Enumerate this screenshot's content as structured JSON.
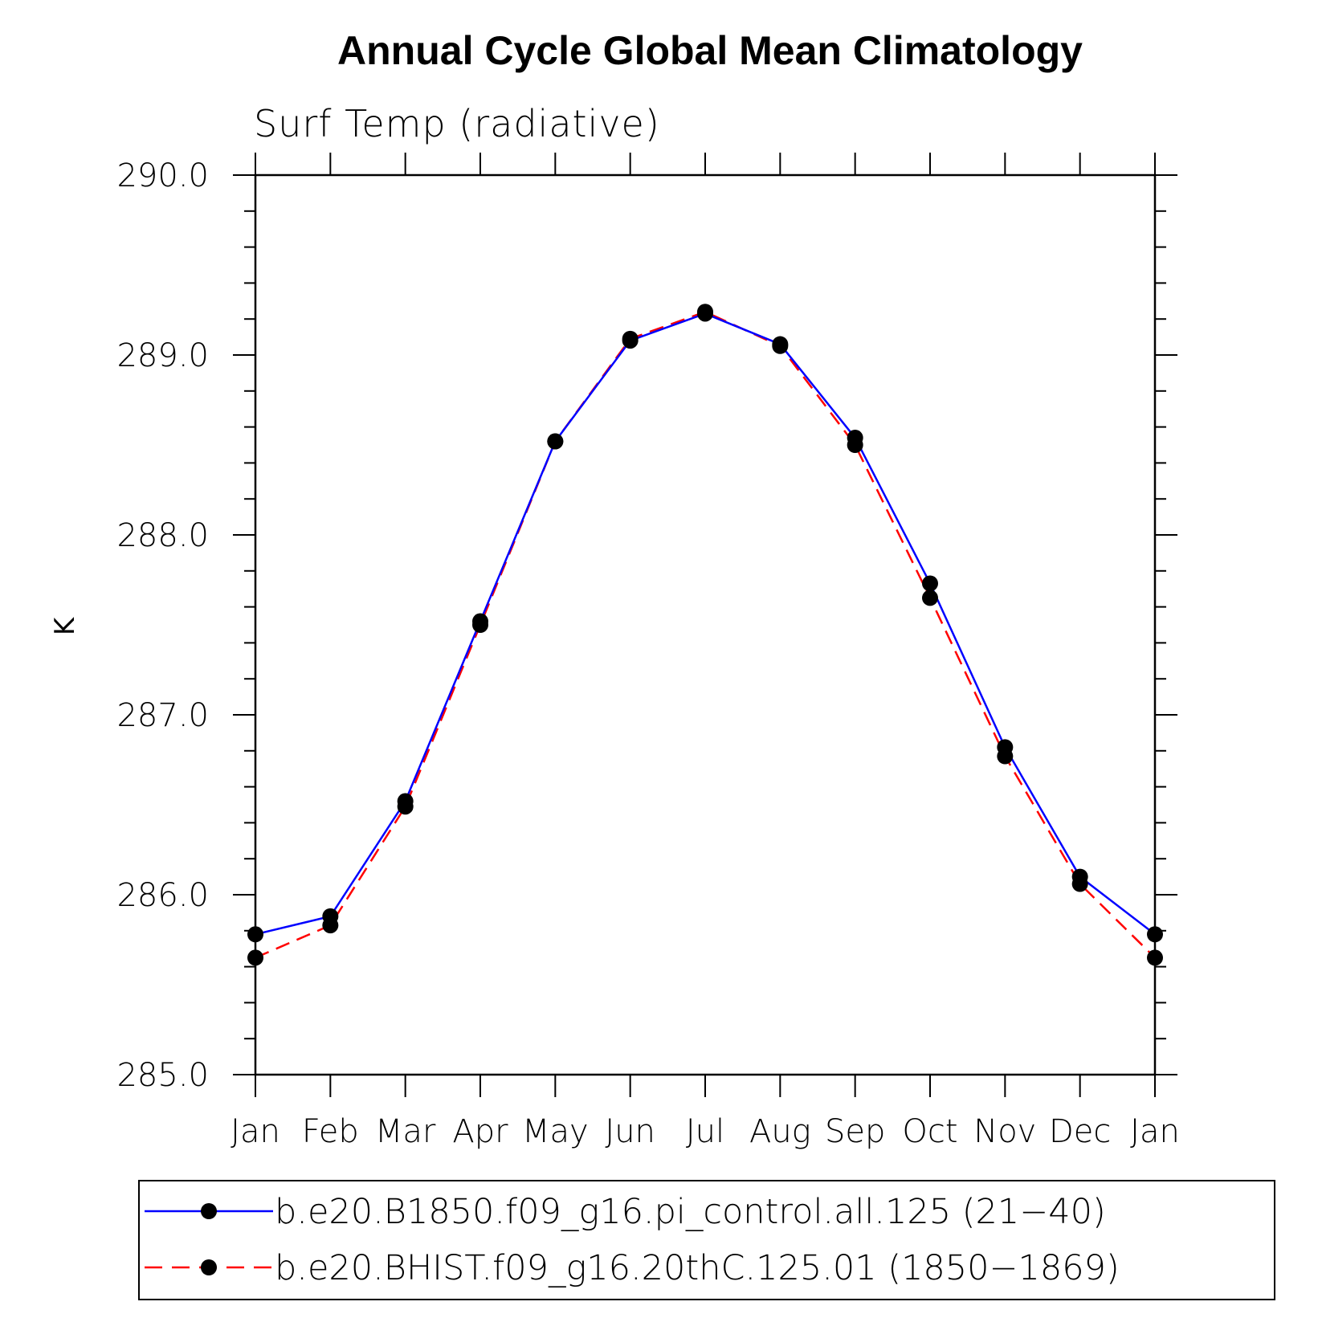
{
  "chart_data": {
    "type": "line",
    "title": "Annual Cycle Global Mean Climatology",
    "subtitle": "Surf Temp (radiative)",
    "xlabel": "",
    "ylabel": "K",
    "categories": [
      "Jan",
      "Feb",
      "Mar",
      "Apr",
      "May",
      "Jun",
      "Jul",
      "Aug",
      "Sep",
      "Oct",
      "Nov",
      "Dec",
      "Jan"
    ],
    "ylim": [
      285.0,
      290.0
    ],
    "yticks": [
      "285.0",
      "286.0",
      "287.0",
      "288.0",
      "289.0",
      "290.0"
    ],
    "y_minor_step": 0.2,
    "series": [
      {
        "name": "b.e20.B1850.f09_g16.pi_control.all.125 (21-40)",
        "color": "#0000ff",
        "dash": "solid",
        "values": [
          285.78,
          285.88,
          286.52,
          287.52,
          288.52,
          289.08,
          289.23,
          289.06,
          288.54,
          287.73,
          286.82,
          286.1,
          285.78
        ]
      },
      {
        "name": "b.e20.BHIST.f09_g16.20thC.125.01 (1850-1869)",
        "color": "#ff0000",
        "dash": "dashed",
        "values": [
          285.65,
          285.83,
          286.49,
          287.5,
          288.52,
          289.09,
          289.24,
          289.05,
          288.5,
          287.65,
          286.77,
          286.06,
          285.65
        ]
      }
    ],
    "marker_color": "#000000",
    "legend_position": "bottom"
  }
}
